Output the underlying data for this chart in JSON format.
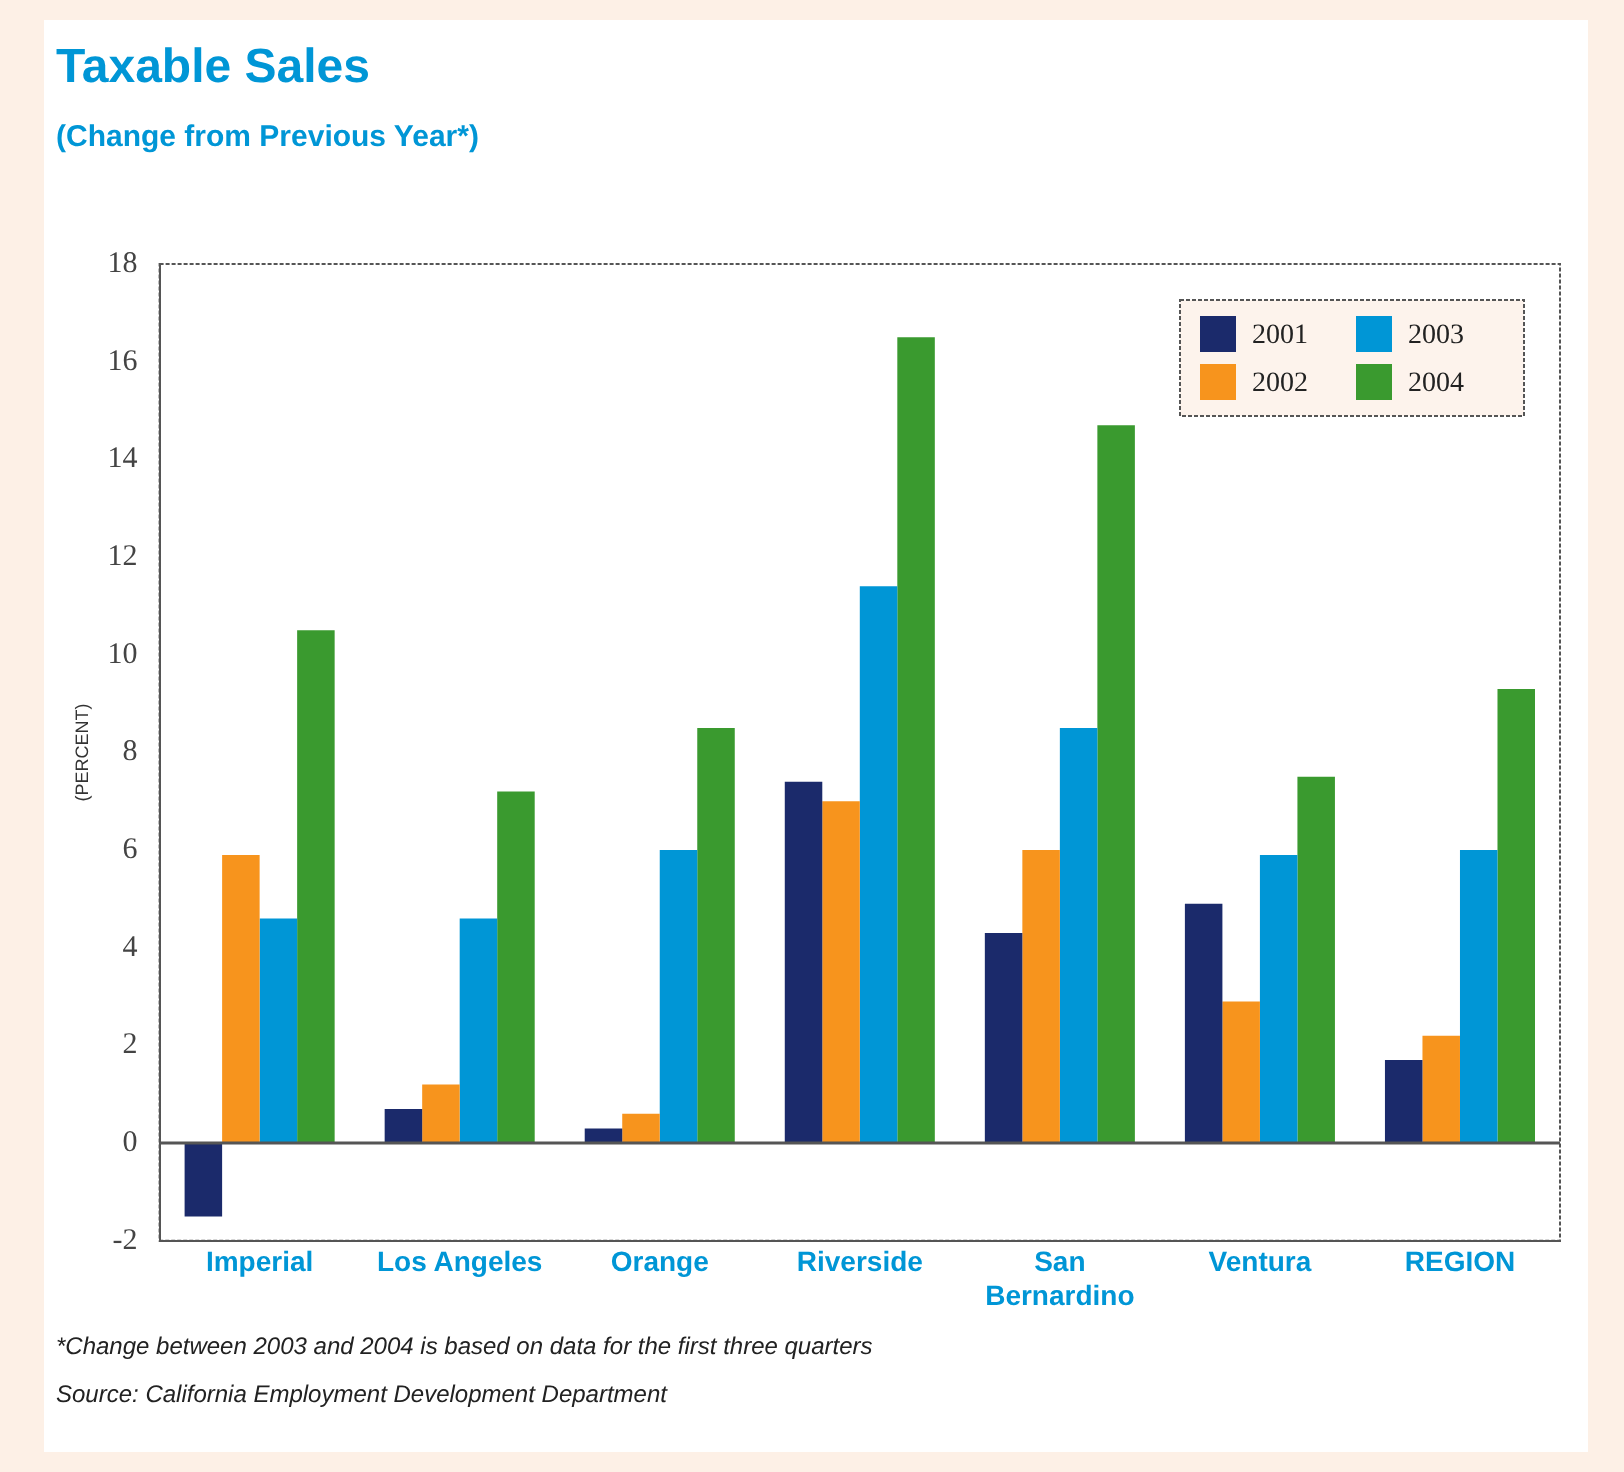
{
  "chart_data": {
    "type": "bar",
    "title": "Taxable Sales",
    "subtitle": "(Change from Previous Year*)",
    "ylabel": "(PERCENT)",
    "categories": [
      "Imperial",
      "Los Angeles",
      "Orange",
      "Riverside",
      "San Bernardino",
      "Ventura",
      "REGION"
    ],
    "series": [
      {
        "name": "2001",
        "color": "#1b2a6b",
        "values": [
          -1.5,
          0.7,
          0.3,
          7.4,
          4.3,
          4.9,
          1.7
        ]
      },
      {
        "name": "2002",
        "color": "#f7941d",
        "values": [
          5.9,
          1.2,
          0.6,
          7.0,
          6.0,
          2.9,
          2.2
        ]
      },
      {
        "name": "2003",
        "color": "#0096d6",
        "values": [
          4.6,
          4.6,
          6.0,
          11.4,
          8.5,
          5.9,
          6.0
        ]
      },
      {
        "name": "2004",
        "color": "#3a9a2f",
        "values": [
          10.5,
          7.2,
          8.5,
          16.5,
          14.7,
          7.5,
          9.3
        ]
      }
    ],
    "ylim": [
      -2,
      18
    ],
    "yticks": [
      -2,
      0,
      2,
      4,
      6,
      8,
      10,
      12,
      14,
      16,
      18
    ],
    "grid": false,
    "ref_lines": [
      {
        "axis": "y",
        "value": 0,
        "color": "#555555",
        "line_style": "solid"
      }
    ],
    "legend": "top right",
    "annotations": [
      "*Change between 2003 and 2004 is based on data for the first three quarters",
      "Source: California Employment Development Department"
    ]
  }
}
